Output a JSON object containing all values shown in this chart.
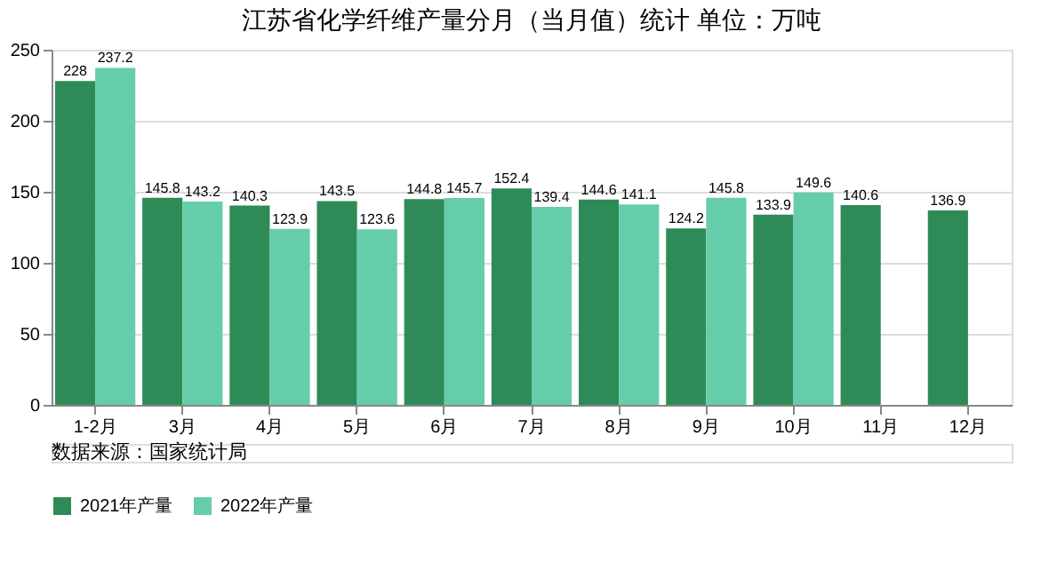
{
  "chart_data": {
    "type": "bar",
    "title": "江苏省化学纤维产量分月（当月值）统计 单位：万吨",
    "categories": [
      "1-2月",
      "3月",
      "4月",
      "5月",
      "6月",
      "7月",
      "8月",
      "9月",
      "10月",
      "11月",
      "12月"
    ],
    "series": [
      {
        "name": "2021年产量",
        "color": "#2e8b57",
        "values": [
          228,
          145.8,
          140.3,
          143.5,
          144.8,
          152.4,
          144.6,
          124.2,
          133.9,
          140.6,
          136.9
        ]
      },
      {
        "name": "2022年产量",
        "color": "#66cdaa",
        "values": [
          237.2,
          143.2,
          123.9,
          123.6,
          145.7,
          139.4,
          141.1,
          145.8,
          149.6,
          null,
          null
        ]
      }
    ],
    "ylim": [
      0,
      250
    ],
    "yticks": [
      0,
      50,
      100,
      150,
      200,
      250
    ],
    "grid": true,
    "legend": "bottom",
    "data_labels": true,
    "annotations": [
      "数据来源：国家统计局"
    ]
  }
}
